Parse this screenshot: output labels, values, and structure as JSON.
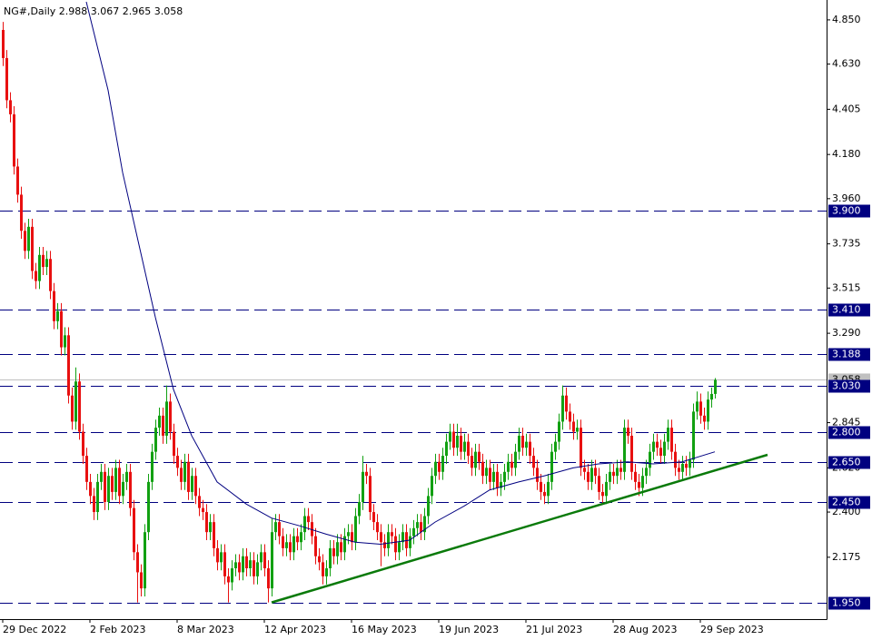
{
  "chart_data": {
    "type": "candlestick",
    "title": "NG#,Daily  2.988 3.067 2.965 3.058",
    "up_color": "#12a012",
    "down_color": "#e81010",
    "xlim": [
      -0.75,
      226.75
    ],
    "ylim": [
      1.867,
      4.949
    ],
    "xticks": [
      {
        "value": 0,
        "label": "29 Dec 2022"
      },
      {
        "value": 24,
        "label": "2 Feb 2023"
      },
      {
        "value": 48,
        "label": "8 Mar 2023"
      },
      {
        "value": 72,
        "label": "12 Apr 2023"
      },
      {
        "value": 96,
        "label": "16 May 2023"
      },
      {
        "value": 120,
        "label": "19 Jun 2023"
      },
      {
        "value": 144,
        "label": "21 Jul 2023"
      },
      {
        "value": 168,
        "label": "28 Aug 2023"
      },
      {
        "value": 192,
        "label": "29 Sep 2023"
      }
    ],
    "yticks": [
      {
        "value": 4.85,
        "label": "4.850"
      },
      {
        "value": 4.63,
        "label": "4.630"
      },
      {
        "value": 4.405,
        "label": "4.405"
      },
      {
        "value": 4.18,
        "label": "4.180"
      },
      {
        "value": 3.96,
        "label": "3.960"
      },
      {
        "value": 3.735,
        "label": "3.735"
      },
      {
        "value": 3.515,
        "label": "3.515"
      },
      {
        "value": 3.29,
        "label": "3.290"
      },
      {
        "value": 2.845,
        "label": "2.845"
      },
      {
        "value": 2.62,
        "label": "2.620"
      },
      {
        "value": 2.4,
        "label": "2.400"
      },
      {
        "value": 2.175,
        "label": "2.175"
      }
    ],
    "levels": [
      {
        "value": 3.9,
        "label": "3.900"
      },
      {
        "value": 3.41,
        "label": "3.410"
      },
      {
        "value": 3.188,
        "label": "3.188"
      },
      {
        "value": 3.03,
        "label": "3.030"
      },
      {
        "value": 2.8,
        "label": "2.800"
      },
      {
        "value": 2.65,
        "label": "2.650"
      },
      {
        "value": 2.45,
        "label": "2.450"
      },
      {
        "value": 1.95,
        "label": "1.950"
      }
    ],
    "level_color": "#000080",
    "last_price": {
      "value": 3.058,
      "label": "3.058"
    },
    "candles": {
      "open": [
        4.8,
        4.66,
        4.45,
        4.38,
        4.12,
        3.98,
        3.8,
        3.7,
        3.82,
        3.6,
        3.55,
        3.68,
        3.62,
        3.66,
        3.5,
        3.35,
        3.4,
        3.22,
        3.28,
        2.98,
        2.85,
        3.05,
        2.8,
        2.68,
        2.55,
        2.48,
        2.4,
        2.55,
        2.6,
        2.45,
        2.58,
        2.5,
        2.62,
        2.48,
        2.55,
        2.6,
        2.42,
        2.2,
        2.1,
        2.02,
        2.3,
        2.55,
        2.7,
        2.82,
        2.88,
        2.78,
        2.95,
        2.8,
        2.68,
        2.62,
        2.55,
        2.65,
        2.5,
        2.58,
        2.48,
        2.42,
        2.4,
        2.3,
        2.35,
        2.22,
        2.15,
        2.2,
        2.08,
        2.05,
        2.12,
        2.15,
        2.1,
        2.18,
        2.12,
        2.16,
        2.08,
        2.15,
        2.2,
        2.12,
        2.02,
        2.3,
        2.35,
        2.28,
        2.22,
        2.25,
        2.2,
        2.28,
        2.25,
        2.3,
        2.38,
        2.35,
        2.28,
        2.18,
        2.15,
        2.08,
        2.12,
        2.22,
        2.18,
        2.25,
        2.2,
        2.28,
        2.3,
        2.25,
        2.38,
        2.45,
        2.6,
        2.58,
        2.4,
        2.35,
        2.3,
        2.25,
        2.22,
        2.3,
        2.28,
        2.2,
        2.25,
        2.3,
        2.22,
        2.28,
        2.32,
        2.35,
        2.3,
        2.38,
        2.48,
        2.58,
        2.65,
        2.6,
        2.68,
        2.75,
        2.8,
        2.72,
        2.78,
        2.7,
        2.75,
        2.68,
        2.62,
        2.7,
        2.65,
        2.58,
        2.62,
        2.55,
        2.6,
        2.52,
        2.55,
        2.6,
        2.65,
        2.62,
        2.7,
        2.78,
        2.72,
        2.75,
        2.68,
        2.62,
        2.55,
        2.5,
        2.48,
        2.55,
        2.7,
        2.75,
        2.85,
        2.98,
        2.9,
        2.85,
        2.8,
        2.82,
        2.62,
        2.6,
        2.55,
        2.62,
        2.58,
        2.5,
        2.48,
        2.55,
        2.6,
        2.58,
        2.62,
        2.6,
        2.82,
        2.78,
        2.6,
        2.55,
        2.52,
        2.58,
        2.62,
        2.7,
        2.75,
        2.72,
        2.68,
        2.75,
        2.82,
        2.7,
        2.62,
        2.6,
        2.64,
        2.62,
        2.66,
        2.9,
        2.95,
        2.88,
        2.85,
        2.96,
        2.988
      ],
      "high": [
        4.84,
        4.7,
        4.49,
        4.42,
        4.16,
        4.02,
        3.84,
        3.86,
        3.86,
        3.64,
        3.72,
        3.72,
        3.7,
        3.7,
        3.54,
        3.44,
        3.44,
        3.32,
        3.32,
        3.02,
        3.12,
        3.09,
        2.84,
        2.72,
        2.59,
        2.52,
        2.59,
        2.64,
        2.64,
        2.62,
        2.62,
        2.66,
        2.66,
        2.59,
        2.64,
        2.64,
        2.46,
        2.24,
        2.14,
        2.34,
        2.59,
        2.74,
        2.86,
        2.92,
        2.92,
        3.03,
        2.99,
        2.84,
        2.72,
        2.66,
        2.69,
        2.69,
        2.62,
        2.62,
        2.52,
        2.46,
        2.44,
        2.39,
        2.39,
        2.26,
        2.24,
        2.24,
        2.12,
        2.16,
        2.19,
        2.19,
        2.22,
        2.22,
        2.2,
        2.2,
        2.19,
        2.24,
        2.24,
        2.16,
        2.37,
        2.39,
        2.39,
        2.32,
        2.29,
        2.29,
        2.32,
        2.32,
        2.34,
        2.42,
        2.42,
        2.39,
        2.32,
        2.22,
        2.19,
        2.16,
        2.26,
        2.26,
        2.29,
        2.29,
        2.32,
        2.34,
        2.34,
        2.42,
        2.49,
        2.68,
        2.64,
        2.62,
        2.44,
        2.39,
        2.34,
        2.29,
        2.34,
        2.34,
        2.32,
        2.29,
        2.34,
        2.34,
        2.32,
        2.36,
        2.39,
        2.39,
        2.42,
        2.52,
        2.62,
        2.69,
        2.69,
        2.72,
        2.79,
        2.84,
        2.84,
        2.84,
        2.82,
        2.79,
        2.79,
        2.72,
        2.74,
        2.74,
        2.69,
        2.66,
        2.66,
        2.64,
        2.64,
        2.59,
        2.64,
        2.69,
        2.69,
        2.74,
        2.82,
        2.82,
        2.79,
        2.79,
        2.72,
        2.66,
        2.59,
        2.54,
        2.59,
        2.74,
        2.79,
        2.89,
        3.03,
        3.02,
        2.94,
        2.89,
        2.86,
        2.86,
        2.66,
        2.64,
        2.66,
        2.66,
        2.62,
        2.54,
        2.59,
        2.64,
        2.64,
        2.66,
        2.66,
        2.86,
        2.86,
        2.82,
        2.64,
        2.59,
        2.62,
        2.66,
        2.74,
        2.79,
        2.79,
        2.76,
        2.79,
        2.86,
        2.86,
        2.74,
        2.66,
        2.68,
        2.68,
        2.7,
        2.94,
        3.0,
        2.99,
        2.92,
        3.0,
        3.02,
        3.067
      ],
      "low": [
        4.62,
        4.41,
        4.34,
        4.08,
        3.94,
        3.76,
        3.66,
        3.66,
        3.56,
        3.51,
        3.51,
        3.58,
        3.58,
        3.46,
        3.31,
        3.31,
        3.18,
        3.18,
        2.94,
        2.81,
        2.81,
        2.76,
        2.64,
        2.51,
        2.44,
        2.36,
        2.36,
        2.51,
        2.41,
        2.41,
        2.46,
        2.46,
        2.44,
        2.44,
        2.51,
        2.38,
        2.16,
        1.95,
        1.98,
        1.98,
        2.26,
        2.51,
        2.66,
        2.78,
        2.74,
        2.74,
        2.76,
        2.64,
        2.58,
        2.51,
        2.51,
        2.46,
        2.46,
        2.44,
        2.38,
        2.36,
        2.26,
        2.26,
        2.18,
        2.11,
        2.11,
        2.04,
        1.95,
        2.01,
        2.08,
        2.06,
        2.06,
        2.08,
        2.08,
        2.04,
        2.04,
        2.11,
        2.08,
        1.95,
        1.98,
        2.26,
        2.24,
        2.18,
        2.18,
        2.16,
        2.16,
        2.21,
        2.21,
        2.26,
        2.31,
        2.24,
        2.14,
        2.11,
        2.04,
        2.04,
        2.08,
        2.14,
        2.14,
        2.16,
        2.16,
        2.24,
        2.21,
        2.21,
        2.34,
        2.41,
        2.54,
        2.36,
        2.31,
        2.26,
        2.13,
        2.18,
        2.18,
        2.24,
        2.16,
        2.16,
        2.21,
        2.18,
        2.18,
        2.24,
        2.28,
        2.26,
        2.26,
        2.34,
        2.44,
        2.54,
        2.56,
        2.56,
        2.64,
        2.71,
        2.68,
        2.68,
        2.66,
        2.66,
        2.64,
        2.58,
        2.58,
        2.61,
        2.54,
        2.54,
        2.51,
        2.51,
        2.48,
        2.48,
        2.51,
        2.56,
        2.58,
        2.58,
        2.66,
        2.68,
        2.68,
        2.64,
        2.58,
        2.51,
        2.46,
        2.44,
        2.44,
        2.51,
        2.66,
        2.71,
        2.81,
        2.86,
        2.81,
        2.76,
        2.76,
        2.58,
        2.56,
        2.51,
        2.51,
        2.54,
        2.46,
        2.44,
        2.44,
        2.51,
        2.54,
        2.54,
        2.56,
        2.56,
        2.74,
        2.56,
        2.51,
        2.48,
        2.48,
        2.54,
        2.58,
        2.66,
        2.68,
        2.64,
        2.64,
        2.71,
        2.66,
        2.58,
        2.56,
        2.56,
        2.58,
        2.58,
        2.62,
        2.86,
        2.84,
        2.81,
        2.81,
        2.92,
        2.965
      ],
      "close": [
        4.66,
        4.45,
        4.38,
        4.12,
        3.98,
        3.8,
        3.7,
        3.82,
        3.6,
        3.55,
        3.68,
        3.62,
        3.66,
        3.5,
        3.35,
        3.4,
        3.22,
        3.28,
        2.98,
        2.85,
        3.05,
        2.8,
        2.68,
        2.55,
        2.48,
        2.4,
        2.55,
        2.6,
        2.45,
        2.58,
        2.5,
        2.62,
        2.48,
        2.55,
        2.6,
        2.42,
        2.2,
        2.1,
        2.02,
        2.3,
        2.55,
        2.7,
        2.82,
        2.88,
        2.78,
        2.95,
        2.8,
        2.68,
        2.62,
        2.55,
        2.65,
        2.5,
        2.58,
        2.48,
        2.42,
        2.4,
        2.3,
        2.35,
        2.22,
        2.15,
        2.2,
        2.08,
        2.05,
        2.12,
        2.15,
        2.1,
        2.18,
        2.12,
        2.16,
        2.08,
        2.15,
        2.2,
        2.12,
        2.02,
        2.3,
        2.35,
        2.28,
        2.22,
        2.25,
        2.2,
        2.28,
        2.25,
        2.3,
        2.38,
        2.35,
        2.28,
        2.18,
        2.15,
        2.08,
        2.12,
        2.22,
        2.18,
        2.25,
        2.2,
        2.28,
        2.3,
        2.25,
        2.38,
        2.45,
        2.6,
        2.58,
        2.4,
        2.35,
        2.3,
        2.25,
        2.22,
        2.3,
        2.28,
        2.2,
        2.25,
        2.3,
        2.22,
        2.28,
        2.32,
        2.35,
        2.3,
        2.38,
        2.48,
        2.58,
        2.65,
        2.6,
        2.68,
        2.75,
        2.8,
        2.72,
        2.78,
        2.7,
        2.75,
        2.68,
        2.62,
        2.7,
        2.65,
        2.58,
        2.62,
        2.55,
        2.6,
        2.52,
        2.55,
        2.6,
        2.65,
        2.62,
        2.7,
        2.78,
        2.72,
        2.75,
        2.68,
        2.62,
        2.55,
        2.5,
        2.48,
        2.55,
        2.7,
        2.75,
        2.85,
        2.98,
        2.9,
        2.85,
        2.8,
        2.82,
        2.62,
        2.6,
        2.55,
        2.62,
        2.58,
        2.5,
        2.48,
        2.55,
        2.6,
        2.58,
        2.62,
        2.6,
        2.82,
        2.78,
        2.6,
        2.55,
        2.52,
        2.58,
        2.62,
        2.7,
        2.75,
        2.72,
        2.68,
        2.75,
        2.82,
        2.7,
        2.62,
        2.6,
        2.64,
        2.62,
        2.66,
        2.9,
        2.95,
        2.88,
        2.85,
        2.96,
        2.988,
        3.058
      ]
    },
    "ma": {
      "color": "#000080",
      "x": [
        23,
        29,
        33,
        37,
        42,
        47,
        52,
        59,
        67,
        74,
        82,
        89,
        97,
        104,
        112,
        119,
        127,
        134,
        142,
        149,
        157,
        164,
        172,
        179,
        187,
        196
      ],
      "values": [
        4.94,
        4.5,
        4.09,
        3.77,
        3.37,
        3.01,
        2.78,
        2.55,
        2.44,
        2.37,
        2.33,
        2.29,
        2.25,
        2.24,
        2.26,
        2.35,
        2.43,
        2.51,
        2.55,
        2.58,
        2.62,
        2.64,
        2.65,
        2.64,
        2.65,
        2.7
      ]
    },
    "trendline": {
      "color": "#0a7a0a",
      "x": [
        74,
        210.5
      ],
      "values": [
        1.95,
        2.685
      ]
    }
  }
}
